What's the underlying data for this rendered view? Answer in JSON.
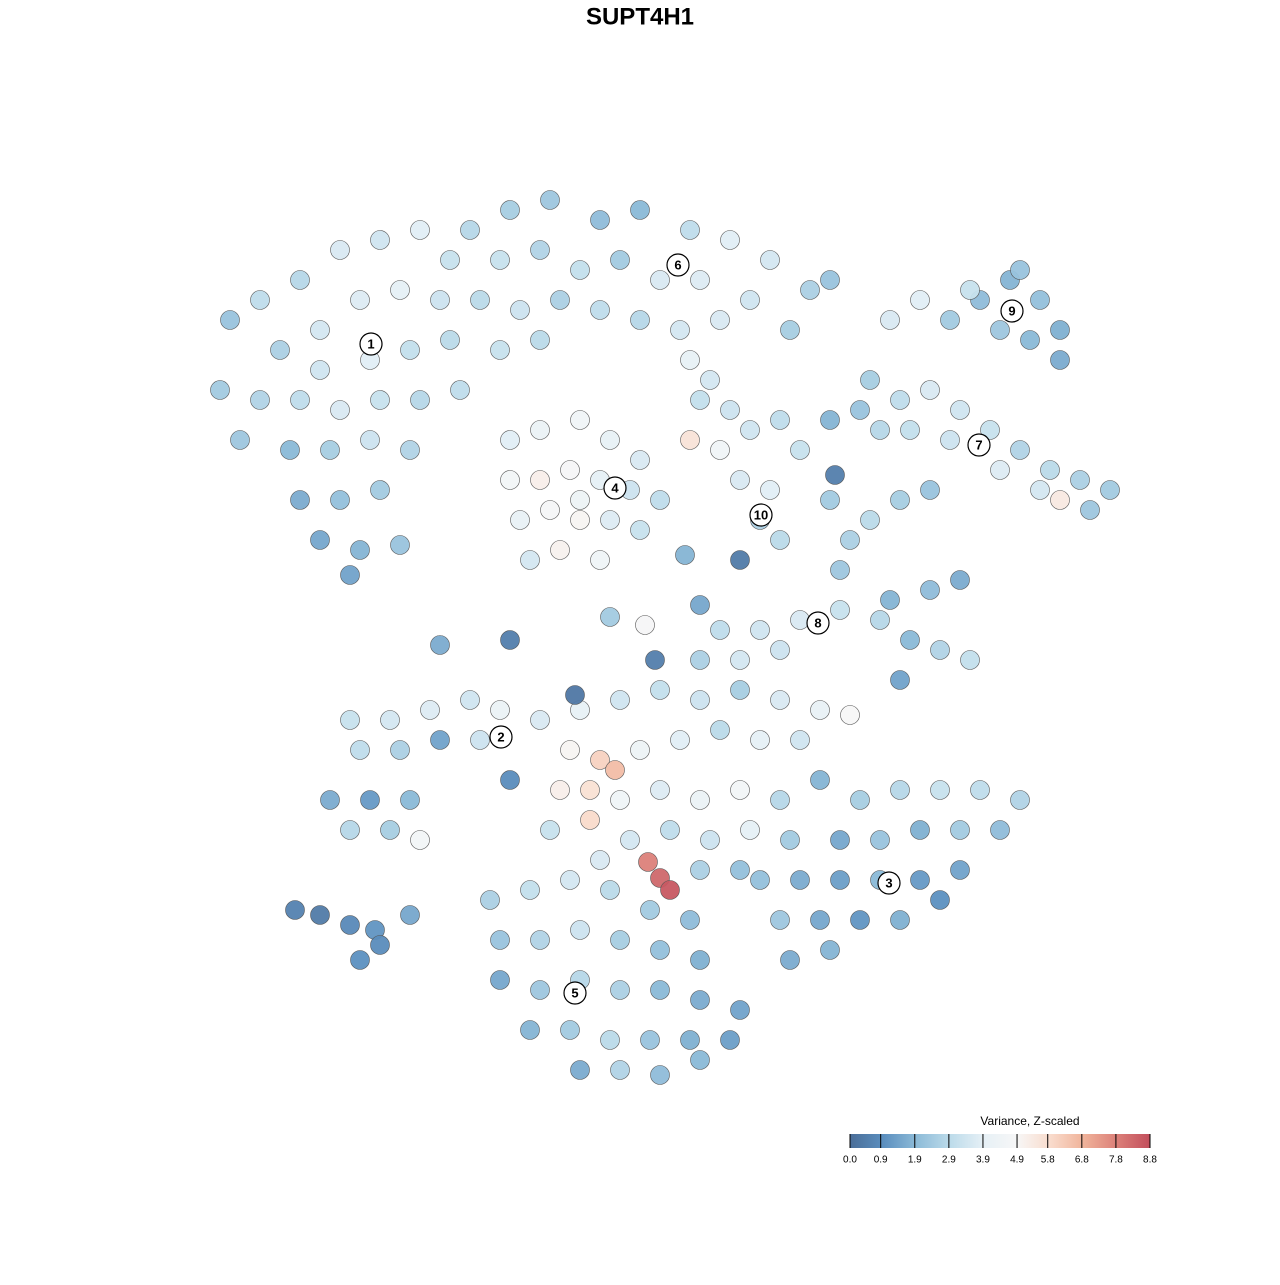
{
  "chart_data": {
    "type": "scatter",
    "title": "SUPT4H1",
    "xlim": [
      0,
      128
    ],
    "ylim": [
      0,
      128
    ],
    "colorbar": {
      "title": "Variance, Z-scaled",
      "zlim": [
        0,
        8.8
      ],
      "ticks": [
        {
          "value": 0,
          "label": "0.0"
        },
        0.9,
        1.9,
        2.9,
        3.9,
        4.9,
        5.8,
        6.8,
        7.8,
        8.8
      ],
      "colormap": [
        "#4a6d98",
        "#5b8fbf",
        "#8dbbd8",
        "#bcdbea",
        "#e6f0f6",
        "#f7f7f7",
        "#f9dccd",
        "#f0b39a",
        "#dc8079",
        "#c24e5c"
      ]
    },
    "cluster_labels": [
      {
        "label": "1",
        "x": 37.1,
        "y": 93.6
      },
      {
        "label": "2",
        "x": 50.1,
        "y": 54.3
      },
      {
        "label": "3",
        "x": 88.9,
        "y": 39.7
      },
      {
        "label": "4",
        "x": 61.5,
        "y": 79.2
      },
      {
        "label": "5",
        "x": 57.5,
        "y": 28.7
      },
      {
        "label": "6",
        "x": 67.8,
        "y": 101.5
      },
      {
        "label": "7",
        "x": 97.9,
        "y": 83.5
      },
      {
        "label": "8",
        "x": 81.8,
        "y": 65.7
      },
      {
        "label": "9",
        "x": 101.2,
        "y": 96.9
      },
      {
        "label": "10",
        "x": 76.1,
        "y": 76.5
      }
    ],
    "points": [
      {
        "x": 23,
        "y": 96,
        "z": 2.2
      },
      {
        "x": 26,
        "y": 98,
        "z": 3.0
      },
      {
        "x": 30,
        "y": 100,
        "z": 2.8
      },
      {
        "x": 34,
        "y": 103,
        "z": 3.6
      },
      {
        "x": 38,
        "y": 104,
        "z": 3.4
      },
      {
        "x": 42,
        "y": 105,
        "z": 3.8
      },
      {
        "x": 45,
        "y": 102,
        "z": 3.2
      },
      {
        "x": 32,
        "y": 95,
        "z": 3.5
      },
      {
        "x": 36,
        "y": 98,
        "z": 3.7
      },
      {
        "x": 40,
        "y": 99,
        "z": 3.9
      },
      {
        "x": 44,
        "y": 98,
        "z": 3.3
      },
      {
        "x": 28,
        "y": 93,
        "z": 2.6
      },
      {
        "x": 32,
        "y": 91,
        "z": 3.4
      },
      {
        "x": 37,
        "y": 92,
        "z": 3.8
      },
      {
        "x": 41,
        "y": 93,
        "z": 3.1
      },
      {
        "x": 45,
        "y": 94,
        "z": 2.9
      },
      {
        "x": 22,
        "y": 89,
        "z": 2.4
      },
      {
        "x": 26,
        "y": 88,
        "z": 2.7
      },
      {
        "x": 30,
        "y": 88,
        "z": 3.0
      },
      {
        "x": 34,
        "y": 87,
        "z": 3.6
      },
      {
        "x": 38,
        "y": 88,
        "z": 3.2
      },
      {
        "x": 42,
        "y": 88,
        "z": 2.8
      },
      {
        "x": 46,
        "y": 89,
        "z": 3.0
      },
      {
        "x": 24,
        "y": 84,
        "z": 2.3
      },
      {
        "x": 29,
        "y": 83,
        "z": 1.9
      },
      {
        "x": 33,
        "y": 83,
        "z": 2.5
      },
      {
        "x": 37,
        "y": 84,
        "z": 3.3
      },
      {
        "x": 41,
        "y": 83,
        "z": 2.7
      },
      {
        "x": 30,
        "y": 78,
        "z": 1.6
      },
      {
        "x": 34,
        "y": 78,
        "z": 2.1
      },
      {
        "x": 38,
        "y": 79,
        "z": 2.4
      },
      {
        "x": 32,
        "y": 74,
        "z": 1.5
      },
      {
        "x": 36,
        "y": 73,
        "z": 1.8
      },
      {
        "x": 40,
        "y": 73.5,
        "z": 2.2
      },
      {
        "x": 35,
        "y": 70.5,
        "z": 1.4
      },
      {
        "x": 47,
        "y": 105,
        "z": 2.8
      },
      {
        "x": 51,
        "y": 107,
        "z": 2.5
      },
      {
        "x": 55,
        "y": 108,
        "z": 2.3
      },
      {
        "x": 60,
        "y": 106,
        "z": 2.0
      },
      {
        "x": 64,
        "y": 107,
        "z": 1.9
      },
      {
        "x": 69,
        "y": 105,
        "z": 3.0
      },
      {
        "x": 73,
        "y": 104,
        "z": 3.8
      },
      {
        "x": 77,
        "y": 102,
        "z": 3.5
      },
      {
        "x": 81,
        "y": 99,
        "z": 2.6
      },
      {
        "x": 50,
        "y": 102,
        "z": 3.2
      },
      {
        "x": 54,
        "y": 103,
        "z": 2.7
      },
      {
        "x": 58,
        "y": 101,
        "z": 3.1
      },
      {
        "x": 62,
        "y": 102,
        "z": 2.4
      },
      {
        "x": 66,
        "y": 100,
        "z": 3.6
      },
      {
        "x": 70,
        "y": 100,
        "z": 3.7
      },
      {
        "x": 75,
        "y": 98,
        "z": 3.4
      },
      {
        "x": 48,
        "y": 98,
        "z": 2.9
      },
      {
        "x": 52,
        "y": 97,
        "z": 3.3
      },
      {
        "x": 56,
        "y": 98,
        "z": 2.6
      },
      {
        "x": 60,
        "y": 97,
        "z": 3.0
      },
      {
        "x": 64,
        "y": 96,
        "z": 2.8
      },
      {
        "x": 68,
        "y": 95,
        "z": 3.5
      },
      {
        "x": 72,
        "y": 96,
        "z": 3.6
      },
      {
        "x": 79,
        "y": 95,
        "z": 2.5
      },
      {
        "x": 50,
        "y": 93,
        "z": 3.2
      },
      {
        "x": 54,
        "y": 94,
        "z": 2.9
      },
      {
        "x": 83,
        "y": 100,
        "z": 2.2
      },
      {
        "x": 89,
        "y": 96,
        "z": 3.6
      },
      {
        "x": 92,
        "y": 98,
        "z": 3.8
      },
      {
        "x": 95,
        "y": 96,
        "z": 2.4
      },
      {
        "x": 98,
        "y": 98,
        "z": 2.0
      },
      {
        "x": 101,
        "y": 100,
        "z": 1.8
      },
      {
        "x": 104,
        "y": 98,
        "z": 2.1
      },
      {
        "x": 106,
        "y": 95,
        "z": 1.7
      },
      {
        "x": 100,
        "y": 95,
        "z": 2.3
      },
      {
        "x": 97,
        "y": 99,
        "z": 3.2
      },
      {
        "x": 103,
        "y": 94,
        "z": 1.9
      },
      {
        "x": 106,
        "y": 92,
        "z": 1.6
      },
      {
        "x": 102,
        "y": 101,
        "z": 2.2
      },
      {
        "x": 87,
        "y": 90,
        "z": 2.5
      },
      {
        "x": 90,
        "y": 88,
        "z": 3.0
      },
      {
        "x": 93,
        "y": 89,
        "z": 3.6
      },
      {
        "x": 96,
        "y": 87,
        "z": 3.4
      },
      {
        "x": 99,
        "y": 85,
        "z": 3.2
      },
      {
        "x": 102,
        "y": 83,
        "z": 2.7
      },
      {
        "x": 105,
        "y": 81,
        "z": 2.9
      },
      {
        "x": 108,
        "y": 80,
        "z": 2.6
      },
      {
        "x": 111,
        "y": 79,
        "z": 2.4
      },
      {
        "x": 88,
        "y": 85,
        "z": 2.8
      },
      {
        "x": 91,
        "y": 85,
        "z": 3.1
      },
      {
        "x": 95,
        "y": 84,
        "z": 3.3
      },
      {
        "x": 100,
        "y": 81,
        "z": 3.7
      },
      {
        "x": 104,
        "y": 79,
        "z": 3.5
      },
      {
        "x": 109,
        "y": 77,
        "z": 2.3
      },
      {
        "x": 106,
        "y": 78,
        "z": 5.4
      },
      {
        "x": 86,
        "y": 87,
        "z": 2.2
      },
      {
        "x": 83,
        "y": 86,
        "z": 1.8
      },
      {
        "x": 51,
        "y": 84,
        "z": 3.8
      },
      {
        "x": 54,
        "y": 85,
        "z": 4.2
      },
      {
        "x": 58,
        "y": 86,
        "z": 4.5
      },
      {
        "x": 61,
        "y": 84,
        "z": 4.0
      },
      {
        "x": 64,
        "y": 82,
        "z": 3.6
      },
      {
        "x": 51,
        "y": 80,
        "z": 4.6
      },
      {
        "x": 54,
        "y": 80,
        "z": 5.2
      },
      {
        "x": 57,
        "y": 81,
        "z": 4.8
      },
      {
        "x": 60,
        "y": 80,
        "z": 3.9
      },
      {
        "x": 63,
        "y": 79,
        "z": 3.3
      },
      {
        "x": 66,
        "y": 78,
        "z": 3.0
      },
      {
        "x": 52,
        "y": 76,
        "z": 4.1
      },
      {
        "x": 55,
        "y": 77,
        "z": 4.7
      },
      {
        "x": 58,
        "y": 76,
        "z": 5.0
      },
      {
        "x": 61,
        "y": 76,
        "z": 3.7
      },
      {
        "x": 64,
        "y": 75,
        "z": 3.2
      },
      {
        "x": 53,
        "y": 72,
        "z": 3.5
      },
      {
        "x": 56,
        "y": 73,
        "z": 5.1
      },
      {
        "x": 60,
        "y": 72,
        "z": 4.4
      },
      {
        "x": 58,
        "y": 78,
        "z": 4.3
      },
      {
        "x": 69,
        "y": 84,
        "z": 5.6
      },
      {
        "x": 72,
        "y": 83,
        "z": 4.5
      },
      {
        "x": 75,
        "y": 85,
        "z": 3.4
      },
      {
        "x": 78,
        "y": 86,
        "z": 3.0
      },
      {
        "x": 80,
        "y": 83,
        "z": 3.2
      },
      {
        "x": 74,
        "y": 80,
        "z": 3.6
      },
      {
        "x": 77,
        "y": 79,
        "z": 3.8
      },
      {
        "x": 76,
        "y": 76,
        "z": 2.6
      },
      {
        "x": 78,
        "y": 74,
        "z": 2.9
      },
      {
        "x": 70,
        "y": 88,
        "z": 3.1
      },
      {
        "x": 73,
        "y": 87,
        "z": 3.3
      },
      {
        "x": 69,
        "y": 92,
        "z": 4.0
      },
      {
        "x": 71,
        "y": 90,
        "z": 3.5
      },
      {
        "x": 83,
        "y": 78,
        "z": 2.4
      },
      {
        "x": 85,
        "y": 74,
        "z": 2.6
      },
      {
        "x": 84,
        "y": 71,
        "z": 2.3
      },
      {
        "x": 87,
        "y": 76,
        "z": 2.9
      },
      {
        "x": 90,
        "y": 78,
        "z": 2.5
      },
      {
        "x": 93,
        "y": 79,
        "z": 2.2
      },
      {
        "x": 72,
        "y": 65,
        "z": 3.0
      },
      {
        "x": 76,
        "y": 65,
        "z": 3.4
      },
      {
        "x": 80,
        "y": 66,
        "z": 3.6
      },
      {
        "x": 84,
        "y": 67,
        "z": 3.2
      },
      {
        "x": 88,
        "y": 66,
        "z": 2.8
      },
      {
        "x": 91,
        "y": 64,
        "z": 1.9
      },
      {
        "x": 94,
        "y": 63,
        "z": 2.7
      },
      {
        "x": 97,
        "y": 62,
        "z": 3.1
      },
      {
        "x": 90,
        "y": 60,
        "z": 1.4
      },
      {
        "x": 89,
        "y": 68,
        "z": 1.8
      },
      {
        "x": 93,
        "y": 69,
        "z": 2.0
      },
      {
        "x": 96,
        "y": 70,
        "z": 1.6
      },
      {
        "x": 70,
        "y": 62,
        "z": 2.6
      },
      {
        "x": 74,
        "y": 62,
        "z": 3.5
      },
      {
        "x": 78,
        "y": 63,
        "z": 3.3
      },
      {
        "x": 35,
        "y": 56,
        "z": 3.2
      },
      {
        "x": 39,
        "y": 56,
        "z": 3.5
      },
      {
        "x": 43,
        "y": 57,
        "z": 3.7
      },
      {
        "x": 47,
        "y": 58,
        "z": 3.4
      },
      {
        "x": 50,
        "y": 57,
        "z": 4.2
      },
      {
        "x": 36,
        "y": 53,
        "z": 3.0
      },
      {
        "x": 40,
        "y": 53,
        "z": 2.6
      },
      {
        "x": 44,
        "y": 54,
        "z": 1.4
      },
      {
        "x": 48,
        "y": 54,
        "z": 3.3
      },
      {
        "x": 33,
        "y": 48,
        "z": 1.6
      },
      {
        "x": 37,
        "y": 48,
        "z": 1.2
      },
      {
        "x": 41,
        "y": 48,
        "z": 1.9
      },
      {
        "x": 35,
        "y": 45,
        "z": 2.8
      },
      {
        "x": 39,
        "y": 45,
        "z": 2.5
      },
      {
        "x": 42,
        "y": 44,
        "z": 4.6
      },
      {
        "x": 51,
        "y": 50,
        "z": 0.9
      },
      {
        "x": 54,
        "y": 56,
        "z": 3.6
      },
      {
        "x": 58,
        "y": 57,
        "z": 4.0
      },
      {
        "x": 62,
        "y": 58,
        "z": 3.4
      },
      {
        "x": 66,
        "y": 59,
        "z": 3.1
      },
      {
        "x": 70,
        "y": 58,
        "z": 3.3
      },
      {
        "x": 74,
        "y": 59,
        "z": 2.5
      },
      {
        "x": 78,
        "y": 58,
        "z": 3.6
      },
      {
        "x": 82,
        "y": 57,
        "z": 4.1
      },
      {
        "x": 85,
        "y": 56.5,
        "z": 4.9
      },
      {
        "x": 57,
        "y": 53,
        "z": 5.0
      },
      {
        "x": 60,
        "y": 52,
        "z": 6.1
      },
      {
        "x": 61.5,
        "y": 51,
        "z": 6.6
      },
      {
        "x": 64,
        "y": 53,
        "z": 4.3
      },
      {
        "x": 68,
        "y": 54,
        "z": 3.8
      },
      {
        "x": 72,
        "y": 55,
        "z": 2.9
      },
      {
        "x": 76,
        "y": 54,
        "z": 3.9
      },
      {
        "x": 80,
        "y": 54,
        "z": 3.4
      },
      {
        "x": 56,
        "y": 49,
        "z": 5.2
      },
      {
        "x": 59,
        "y": 49,
        "z": 5.7
      },
      {
        "x": 62,
        "y": 48,
        "z": 4.4
      },
      {
        "x": 66,
        "y": 49,
        "z": 3.7
      },
      {
        "x": 70,
        "y": 48,
        "z": 4.2
      },
      {
        "x": 74,
        "y": 49,
        "z": 4.6
      },
      {
        "x": 78,
        "y": 48,
        "z": 2.8
      },
      {
        "x": 55,
        "y": 45,
        "z": 3.2
      },
      {
        "x": 59,
        "y": 46,
        "z": 5.9
      },
      {
        "x": 63,
        "y": 44,
        "z": 3.5
      },
      {
        "x": 67,
        "y": 45,
        "z": 3.0
      },
      {
        "x": 71,
        "y": 44,
        "z": 3.3
      },
      {
        "x": 75,
        "y": 45,
        "z": 3.9
      },
      {
        "x": 79,
        "y": 44,
        "z": 2.4
      },
      {
        "x": 60,
        "y": 42,
        "z": 3.6
      },
      {
        "x": 64.8,
        "y": 41.8,
        "z": 7.8
      },
      {
        "x": 66,
        "y": 40.2,
        "z": 8.3
      },
      {
        "x": 67,
        "y": 39,
        "z": 8.6
      },
      {
        "x": 70,
        "y": 41,
        "z": 2.6
      },
      {
        "x": 74,
        "y": 41,
        "z": 2.1
      },
      {
        "x": 82,
        "y": 50,
        "z": 1.8
      },
      {
        "x": 86,
        "y": 48,
        "z": 2.5
      },
      {
        "x": 90,
        "y": 49,
        "z": 2.8
      },
      {
        "x": 94,
        "y": 49,
        "z": 3.2
      },
      {
        "x": 98,
        "y": 49,
        "z": 3.0
      },
      {
        "x": 102,
        "y": 48,
        "z": 2.7
      },
      {
        "x": 84,
        "y": 44,
        "z": 1.5
      },
      {
        "x": 88,
        "y": 44,
        "z": 2.2
      },
      {
        "x": 92,
        "y": 45,
        "z": 1.7
      },
      {
        "x": 96,
        "y": 45,
        "z": 2.4
      },
      {
        "x": 100,
        "y": 45,
        "z": 2.0
      },
      {
        "x": 80,
        "y": 40,
        "z": 1.6
      },
      {
        "x": 84,
        "y": 40,
        "z": 1.3
      },
      {
        "x": 88,
        "y": 40,
        "z": 1.9
      },
      {
        "x": 92,
        "y": 40,
        "z": 1.2
      },
      {
        "x": 96,
        "y": 41,
        "z": 1.4
      },
      {
        "x": 78,
        "y": 36,
        "z": 2.3
      },
      {
        "x": 82,
        "y": 36,
        "z": 1.5
      },
      {
        "x": 86,
        "y": 36,
        "z": 1.1
      },
      {
        "x": 90,
        "y": 36,
        "z": 1.7
      },
      {
        "x": 94,
        "y": 38,
        "z": 1.0
      },
      {
        "x": 79,
        "y": 32,
        "z": 1.6
      },
      {
        "x": 83,
        "y": 33,
        "z": 1.8
      },
      {
        "x": 76,
        "y": 40,
        "z": 2.1
      },
      {
        "x": 49,
        "y": 38,
        "z": 2.6
      },
      {
        "x": 53,
        "y": 39,
        "z": 3.1
      },
      {
        "x": 57,
        "y": 40,
        "z": 3.5
      },
      {
        "x": 61,
        "y": 39,
        "z": 2.9
      },
      {
        "x": 65,
        "y": 37,
        "z": 2.4
      },
      {
        "x": 69,
        "y": 36,
        "z": 2.0
      },
      {
        "x": 50,
        "y": 34,
        "z": 2.2
      },
      {
        "x": 54,
        "y": 34,
        "z": 2.7
      },
      {
        "x": 58,
        "y": 35,
        "z": 3.3
      },
      {
        "x": 62,
        "y": 34,
        "z": 2.5
      },
      {
        "x": 66,
        "y": 33,
        "z": 2.1
      },
      {
        "x": 70,
        "y": 32,
        "z": 1.7
      },
      {
        "x": 50,
        "y": 30,
        "z": 1.5
      },
      {
        "x": 54,
        "y": 29,
        "z": 2.3
      },
      {
        "x": 58,
        "y": 30,
        "z": 2.8
      },
      {
        "x": 62,
        "y": 29,
        "z": 2.6
      },
      {
        "x": 66,
        "y": 29,
        "z": 1.9
      },
      {
        "x": 70,
        "y": 28,
        "z": 1.6
      },
      {
        "x": 74,
        "y": 27,
        "z": 1.4
      },
      {
        "x": 53,
        "y": 25,
        "z": 1.8
      },
      {
        "x": 57,
        "y": 25,
        "z": 2.4
      },
      {
        "x": 61,
        "y": 24,
        "z": 2.9
      },
      {
        "x": 65,
        "y": 24,
        "z": 2.2
      },
      {
        "x": 69,
        "y": 24,
        "z": 1.7
      },
      {
        "x": 73,
        "y": 24,
        "z": 1.3
      },
      {
        "x": 58,
        "y": 21,
        "z": 1.6
      },
      {
        "x": 62,
        "y": 21,
        "z": 2.7
      },
      {
        "x": 66,
        "y": 20.5,
        "z": 2.0
      },
      {
        "x": 70,
        "y": 22,
        "z": 1.9
      },
      {
        "x": 29.5,
        "y": 37,
        "z": 0.6
      },
      {
        "x": 32,
        "y": 36.5,
        "z": 0.4
      },
      {
        "x": 35,
        "y": 35.5,
        "z": 0.8
      },
      {
        "x": 37.5,
        "y": 35,
        "z": 1.1
      },
      {
        "x": 36,
        "y": 32,
        "z": 1.0
      },
      {
        "x": 41,
        "y": 36.5,
        "z": 1.5
      },
      {
        "x": 38,
        "y": 33.5,
        "z": 0.9
      },
      {
        "x": 51,
        "y": 64,
        "z": 0.5
      },
      {
        "x": 44,
        "y": 63.5,
        "z": 1.6
      },
      {
        "x": 57.5,
        "y": 58.5,
        "z": 0.3
      },
      {
        "x": 65.5,
        "y": 62,
        "z": 0.5
      },
      {
        "x": 74,
        "y": 72,
        "z": 0.4
      },
      {
        "x": 83.5,
        "y": 80.5,
        "z": 0.5
      },
      {
        "x": 68.5,
        "y": 72.5,
        "z": 1.8
      },
      {
        "x": 70,
        "y": 67.5,
        "z": 1.5
      },
      {
        "x": 64.5,
        "y": 65.5,
        "z": 4.8
      },
      {
        "x": 61,
        "y": 66.3,
        "z": 2.4
      }
    ]
  }
}
